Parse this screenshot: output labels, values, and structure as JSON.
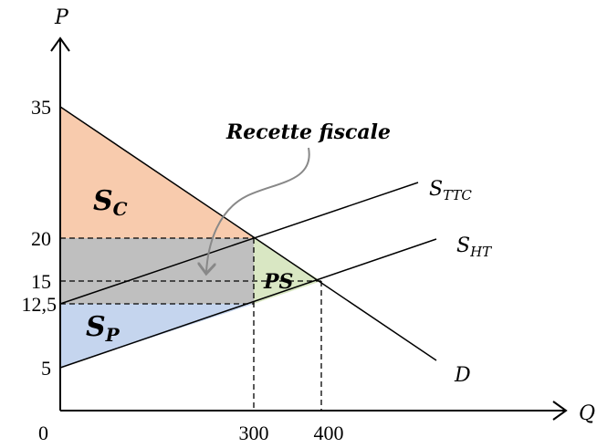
{
  "axes": {
    "y_label": "P",
    "x_label": "Q",
    "origin": "0",
    "y_ticks": [
      "35",
      "20",
      "15",
      "12,5",
      "5"
    ],
    "x_ticks": [
      "300",
      "400"
    ]
  },
  "curves": {
    "supply_ttc": {
      "main": "S",
      "sub": "TTC"
    },
    "supply_ht": {
      "main": "S",
      "sub": "HT"
    },
    "demand": "D"
  },
  "areas": {
    "consumer_surplus": {
      "main": "S",
      "sub": "C"
    },
    "producer_surplus": {
      "main": "S",
      "sub": "P"
    },
    "deadweight_loss": "PS"
  },
  "annotation": "Recette fiscale"
}
